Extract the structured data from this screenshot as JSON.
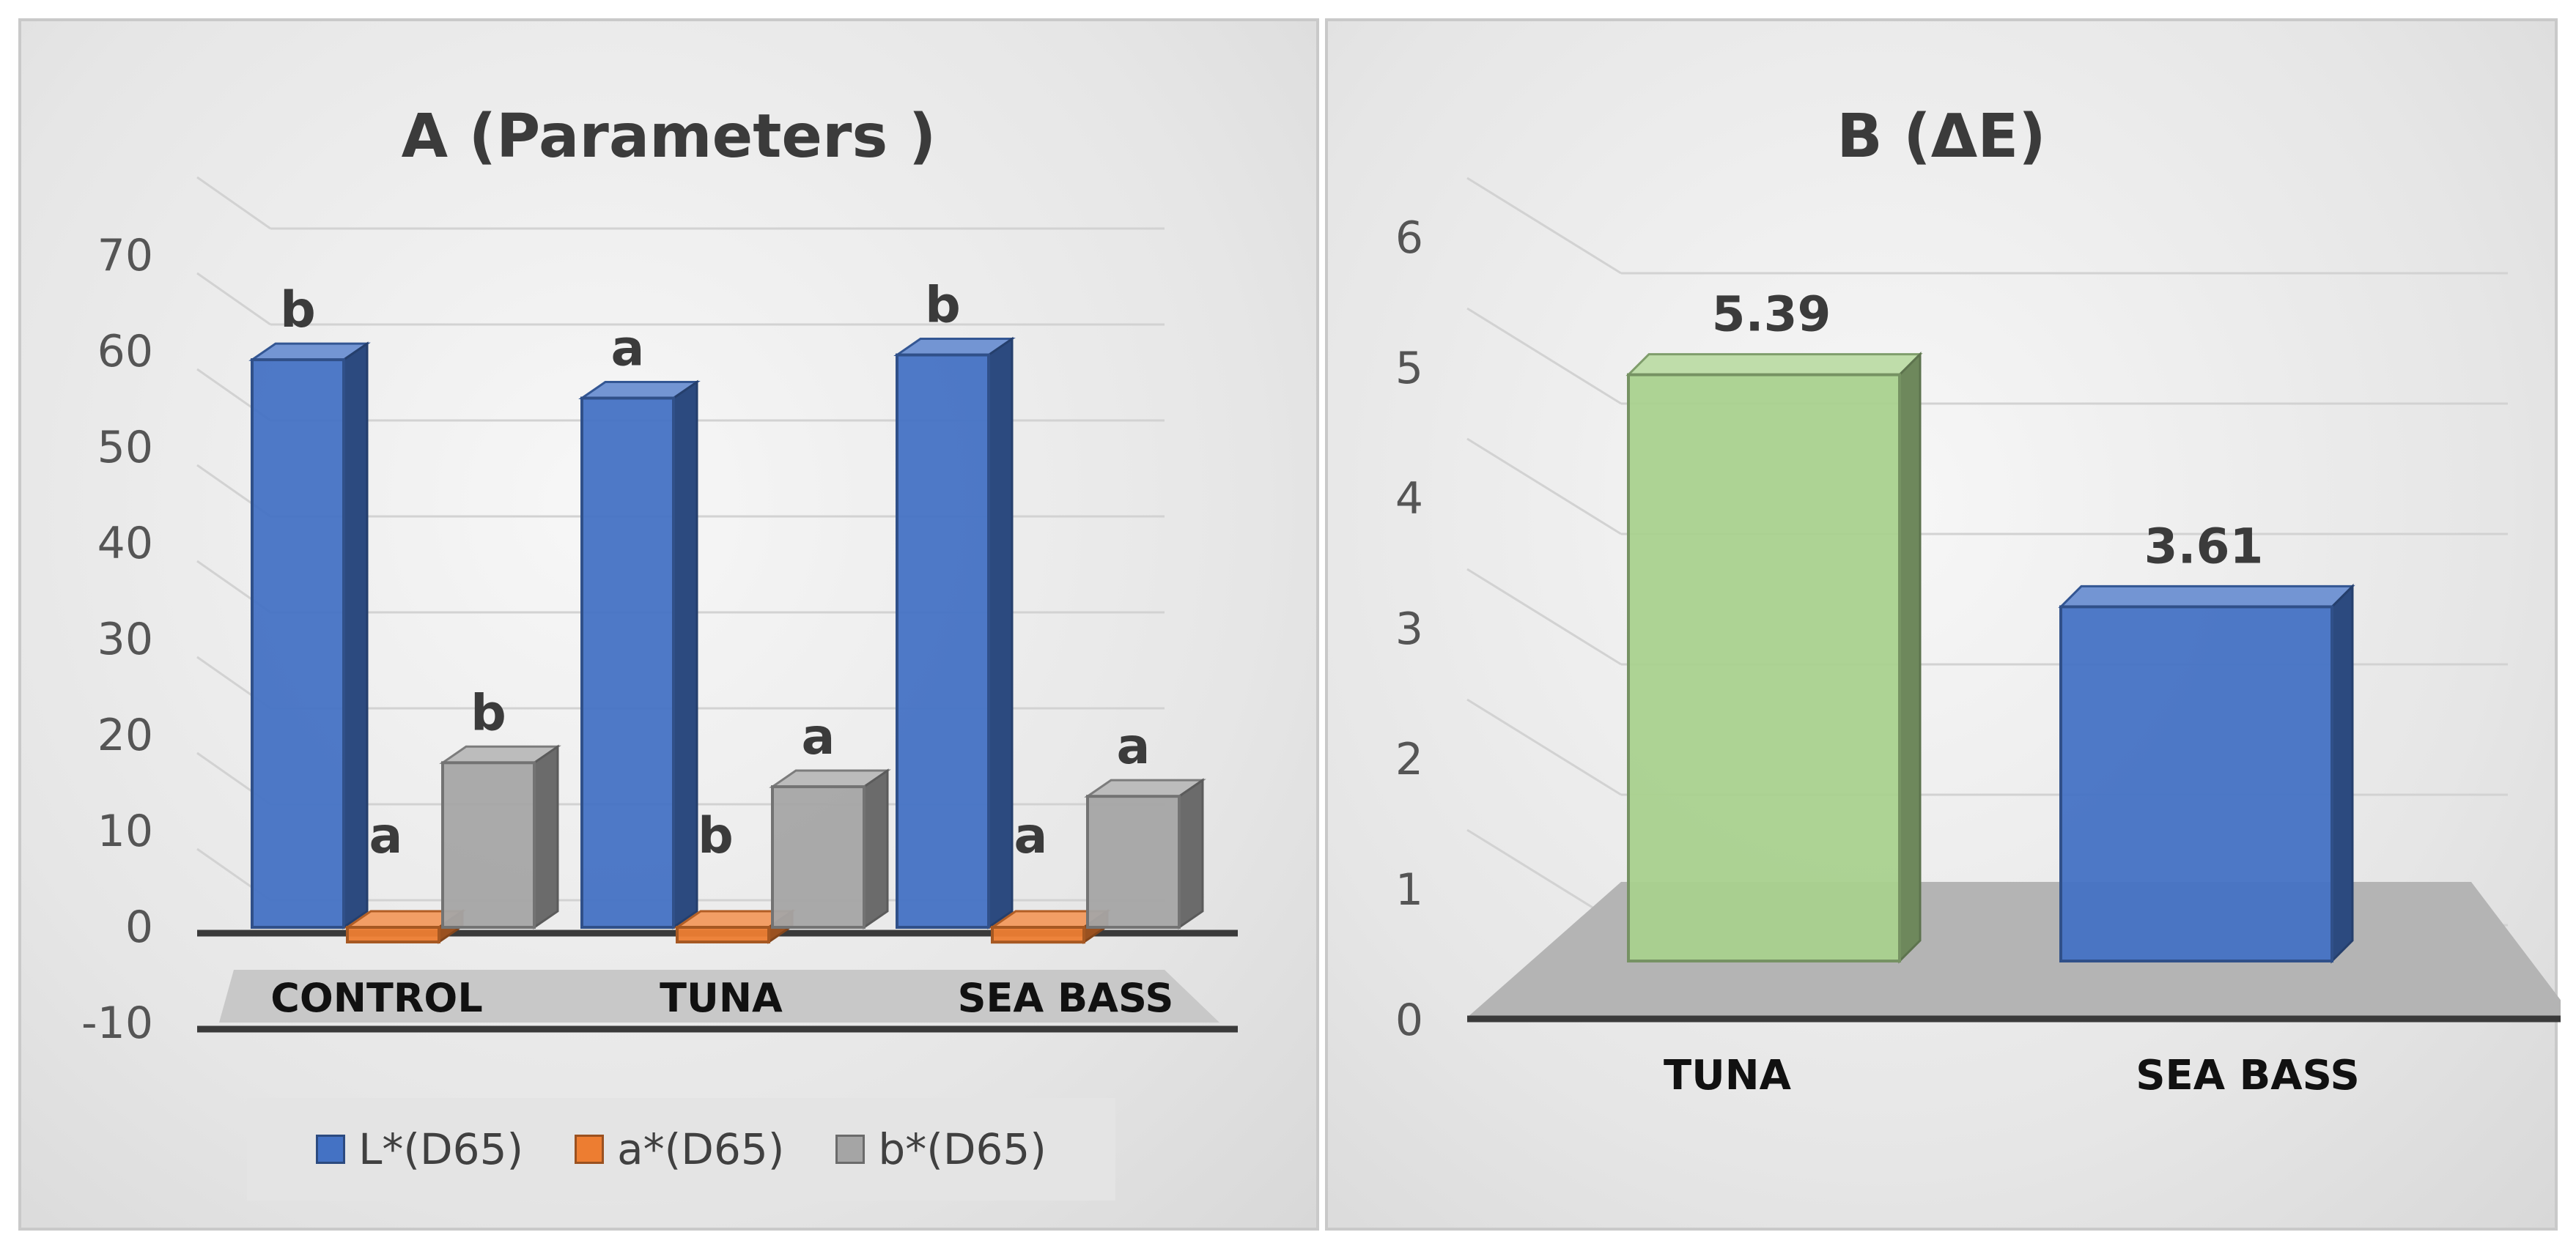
{
  "chart_data": [
    {
      "type": "bar",
      "title": "A (Parameters )",
      "categories": [
        "CONTROL",
        "TUNA",
        "SEA BASS"
      ],
      "series": [
        {
          "name": "L*(D65)",
          "color": "#4472c4",
          "values": [
            59,
            55,
            59.5
          ],
          "labels": [
            "b",
            "a",
            "b"
          ]
        },
        {
          "name": "a*(D65)",
          "color": "#ed7d31",
          "values": [
            -1.5,
            -1.5,
            -2
          ],
          "labels": [
            "a",
            "b",
            "a"
          ]
        },
        {
          "name": "b*(D65)",
          "color": "#a5a5a5",
          "values": [
            17,
            14.5,
            13.5
          ],
          "labels": [
            "b",
            "a",
            "a"
          ]
        }
      ],
      "ylim": [
        -10,
        70
      ],
      "yticks": [
        70,
        60,
        50,
        40,
        30,
        20,
        10,
        0,
        -10
      ],
      "grid": true,
      "legend": "bottom"
    },
    {
      "type": "bar",
      "title": "B (ΔE)",
      "categories": [
        "TUNA",
        "SEA BASS"
      ],
      "series": [
        {
          "name": "",
          "values": [
            5.39,
            3.61
          ],
          "labels": [
            "5.39",
            "3.61"
          ],
          "colors": [
            "#a9d18e",
            "#4472c4"
          ]
        }
      ],
      "ylim": [
        0,
        6
      ],
      "yticks": [
        6,
        5,
        4,
        3,
        2,
        1,
        0
      ],
      "grid": true
    }
  ]
}
